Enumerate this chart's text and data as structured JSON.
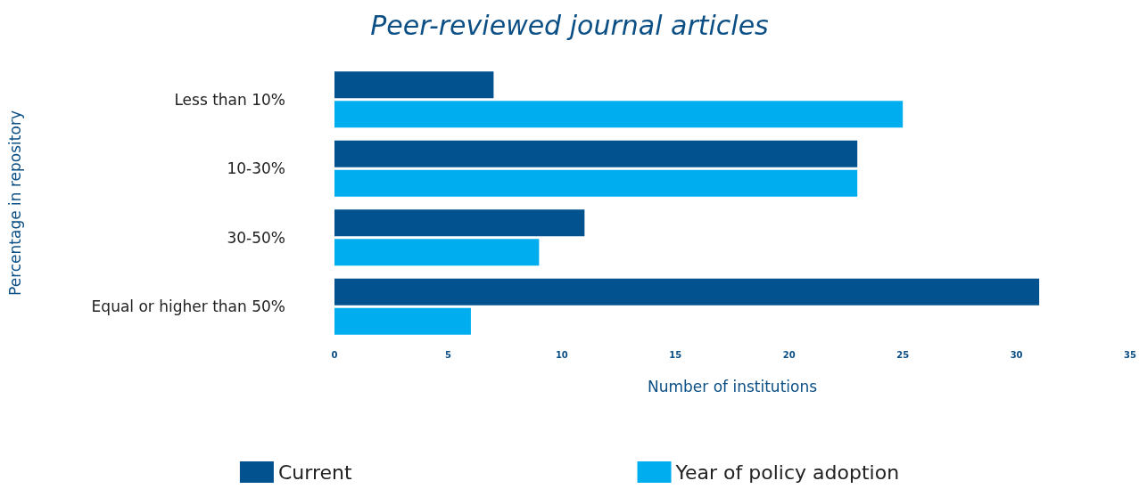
{
  "chart_data": {
    "type": "bar",
    "orientation": "horizontal",
    "title": "Peer-reviewed journal articles",
    "xlabel": "Number of institutions",
    "ylabel": "Percentage in repository",
    "categories": [
      "Less than 10%",
      "10-30%",
      "30-50%",
      "Equal or higher than 50%"
    ],
    "series": [
      {
        "name": "Current",
        "color": "#02528f",
        "values": [
          7,
          23,
          11,
          31
        ]
      },
      {
        "name": "Year of policy adoption",
        "color": "#00adef",
        "values": [
          25,
          23,
          9,
          6
        ]
      }
    ],
    "xlim": [
      0,
      35
    ],
    "xticks": [
      0,
      5,
      10,
      15,
      20,
      25,
      30,
      35
    ],
    "grid": false,
    "legend": "bottom"
  }
}
